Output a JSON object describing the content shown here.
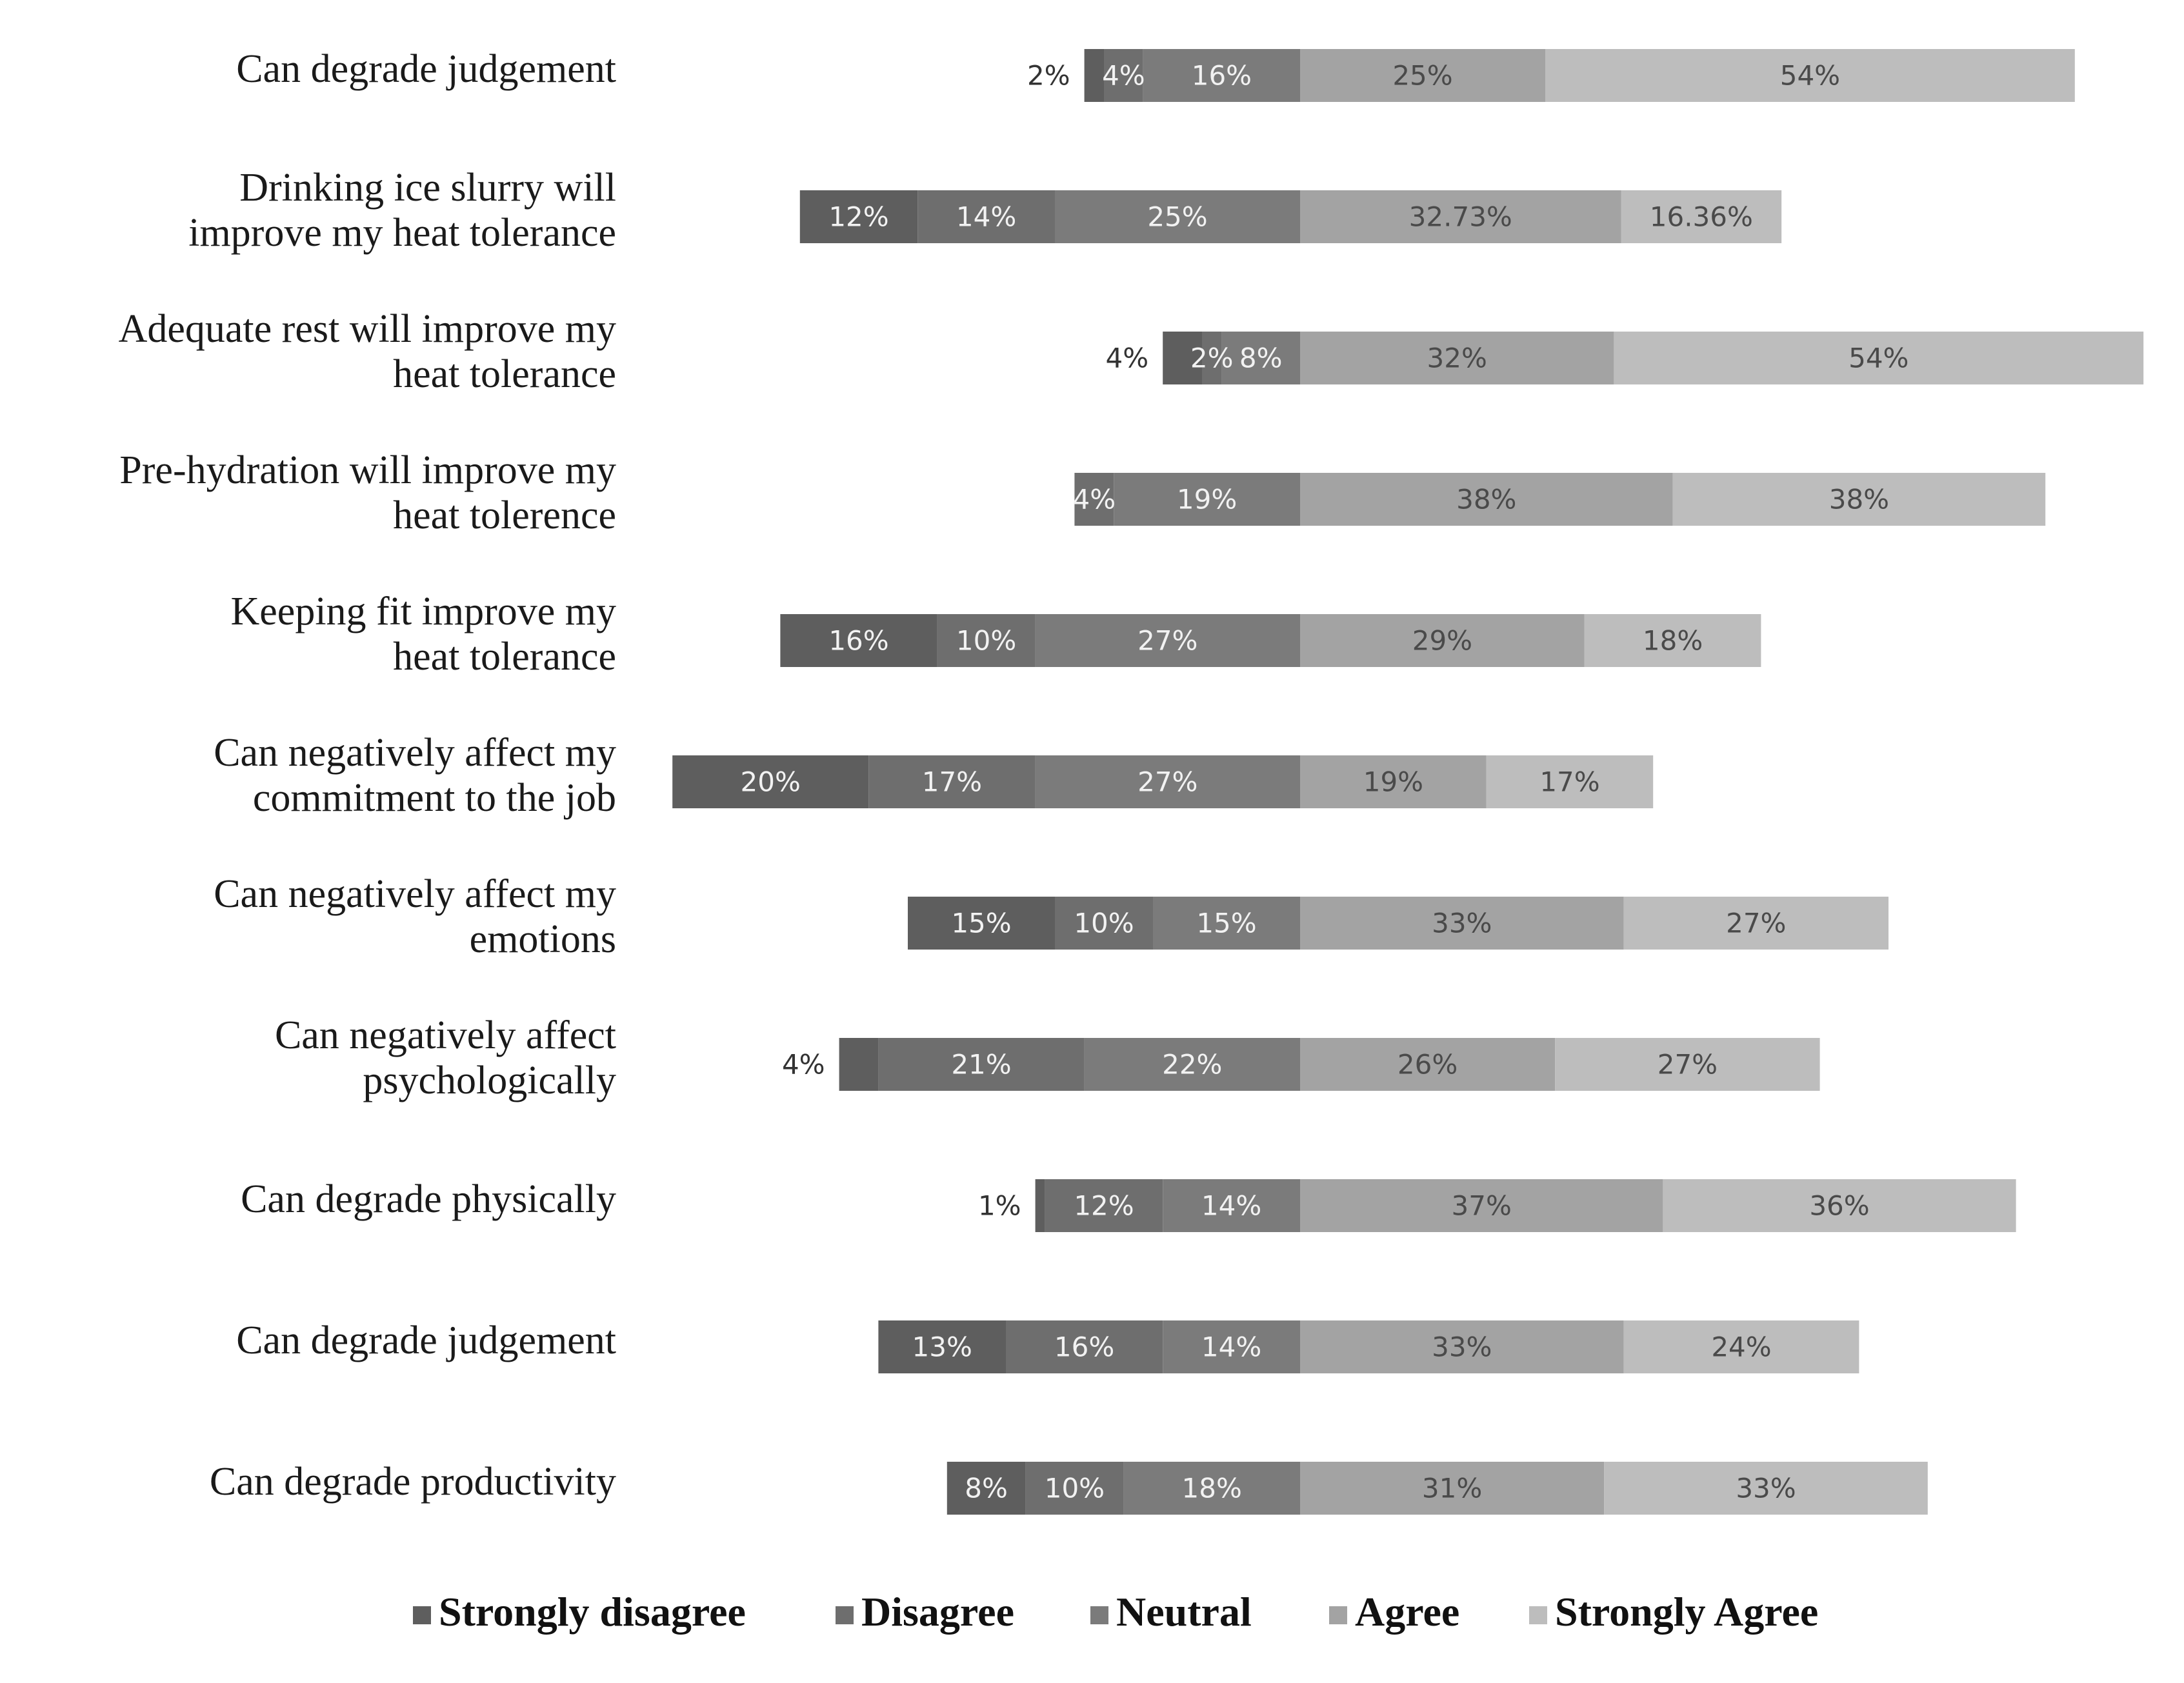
{
  "chart_data": {
    "type": "bar",
    "orientation": "horizontal",
    "stacked": "diverging",
    "title": "",
    "xlabel": "",
    "ylabel": "",
    "grid": false,
    "legend_position": "bottom",
    "categories": [
      "Can degrade judgement",
      "Drinking ice slurry will improve my heat tolerance",
      "Adequate rest will improve my heat tolerance",
      "Pre-hydration will improve my heat tolerence",
      "Keeping fit improve my heat tolerance",
      "Can negatively affect my commitment to the job",
      "Can negatively affect my emotions",
      "Can negatively affect psychologically",
      "Can degrade physically",
      "Can degrade judgement",
      "Can degrade productivity"
    ],
    "category_lines": [
      [
        "Can degrade judgement"
      ],
      [
        "Drinking ice slurry will",
        "improve my heat tolerance"
      ],
      [
        "Adequate rest will improve my",
        "heat tolerance"
      ],
      [
        "Pre-hydration will improve my",
        "heat tolerence"
      ],
      [
        "Keeping fit improve my",
        "heat tolerance"
      ],
      [
        "Can negatively affect my",
        "commitment to the job"
      ],
      [
        "Can negatively affect my",
        "emotions"
      ],
      [
        "Can negatively affect",
        "psychologically"
      ],
      [
        "Can degrade physically"
      ],
      [
        "Can degrade judgement"
      ],
      [
        "Can degrade productivity"
      ]
    ],
    "series": [
      {
        "name": "Strongly disagree",
        "color": "#5e5e5e",
        "values": [
          2,
          12,
          4,
          0,
          16,
          20,
          15,
          4,
          1,
          13,
          8
        ],
        "labels": [
          "2%",
          "12%",
          "4%",
          "",
          "16%",
          "20%",
          "15%",
          "4%",
          "1%",
          "13%",
          "8%"
        ]
      },
      {
        "name": "Disagree",
        "color": "#6e6e6e",
        "values": [
          4,
          14,
          2,
          4,
          10,
          17,
          10,
          21,
          12,
          16,
          10
        ],
        "labels": [
          "4%",
          "14%",
          "2%",
          "4%",
          "10%",
          "17%",
          "10%",
          "21%",
          "12%",
          "16%",
          "10%"
        ]
      },
      {
        "name": "Neutral",
        "color": "#7b7b7b",
        "values": [
          16,
          25,
          8,
          19,
          27,
          27,
          15,
          22,
          14,
          14,
          18
        ],
        "labels": [
          "16%",
          "25%",
          "8%",
          "19%",
          "27%",
          "27%",
          "15%",
          "22%",
          "14%",
          "14%",
          "18%"
        ]
      },
      {
        "name": "Agree",
        "color": "#a3a3a3",
        "values": [
          25,
          32.73,
          32,
          38,
          29,
          19,
          33,
          26,
          37,
          33,
          31
        ],
        "labels": [
          "25%",
          "32.73%",
          "32%",
          "38%",
          "29%",
          "19%",
          "33%",
          "26%",
          "37%",
          "33%",
          "31%"
        ]
      },
      {
        "name": "Strongly Agree",
        "color": "#bdbdbd",
        "values": [
          54,
          16.36,
          54,
          38,
          18,
          17,
          27,
          27,
          36,
          24,
          33
        ],
        "labels": [
          "54%",
          "16.36%",
          "54%",
          "38%",
          "18%",
          "17%",
          "27%",
          "27%",
          "36%",
          "24%",
          "33%"
        ]
      }
    ],
    "outside_labels": [
      0,
      2,
      7,
      8
    ]
  }
}
